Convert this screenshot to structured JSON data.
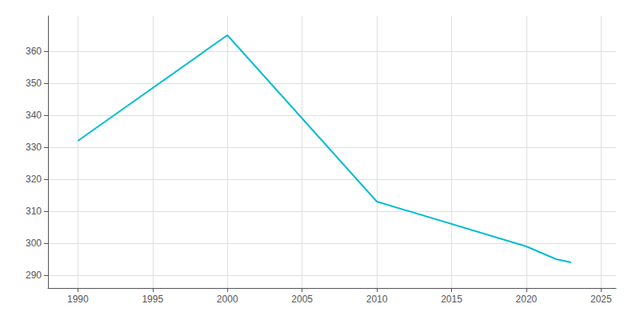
{
  "chart_data": {
    "type": "line",
    "x": [
      1990,
      2000,
      2010,
      2020,
      2022,
      2023
    ],
    "values": [
      332,
      365,
      313,
      299,
      295,
      294
    ],
    "color": "#00BCD4",
    "xlim": [
      1988,
      2026
    ],
    "ylim": [
      286,
      371
    ],
    "xticks": [
      1990,
      1995,
      2000,
      2005,
      2010,
      2015,
      2020,
      2025
    ],
    "yticks": [
      290,
      300,
      310,
      320,
      330,
      340,
      350,
      360
    ],
    "grid": true
  }
}
